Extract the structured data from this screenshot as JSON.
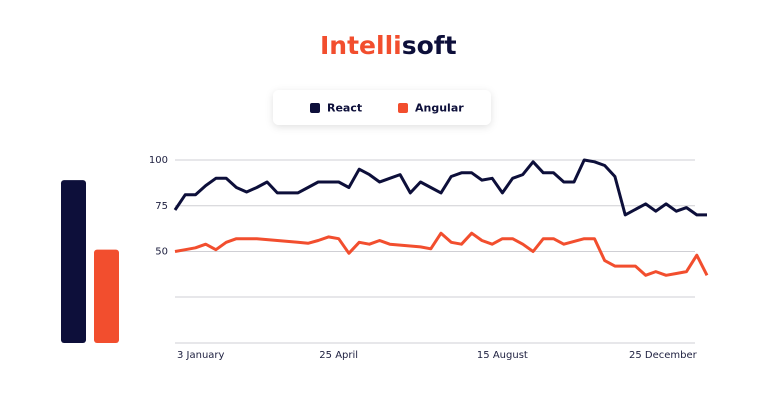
{
  "chart_data": {
    "type": "line",
    "brand": [
      "Intelli",
      "soft"
    ],
    "categories": [
      "3 January",
      null,
      null,
      null,
      null,
      null,
      null,
      null,
      null,
      null,
      null,
      null,
      null,
      null,
      null,
      null,
      "25 April",
      null,
      null,
      null,
      null,
      null,
      null,
      null,
      null,
      null,
      null,
      null,
      null,
      null,
      null,
      null,
      "15 August",
      null,
      null,
      null,
      null,
      null,
      null,
      null,
      null,
      null,
      null,
      null,
      null,
      null,
      null,
      null,
      null,
      null,
      null,
      "25 December",
      null
    ],
    "series": [
      {
        "name": "React",
        "color": "#0d0f3a",
        "bar_value": 89,
        "values": [
          72.7,
          81,
          81,
          86,
          90,
          90,
          85,
          82.5,
          85,
          88,
          82,
          82,
          82,
          85,
          88,
          88,
          88,
          85,
          95,
          92,
          88,
          90,
          92,
          82,
          88,
          85,
          82,
          91,
          93,
          93,
          89,
          90,
          82,
          90,
          92,
          99,
          93,
          93,
          88,
          88,
          100,
          99,
          97,
          91,
          70,
          73,
          76,
          72,
          76,
          72,
          74,
          70,
          70
        ]
      },
      {
        "name": "Angular",
        "color": "#f24e2e",
        "bar_value": 51,
        "values": [
          50,
          51,
          52,
          54,
          51,
          55,
          57,
          57,
          57,
          56.5,
          56,
          55.5,
          55,
          54.5,
          56,
          58,
          57,
          49,
          55,
          54,
          56,
          54,
          53.5,
          53,
          52.5,
          51.5,
          60,
          55,
          54,
          60,
          56,
          54,
          57,
          57,
          54,
          50,
          57,
          57,
          54,
          55.5,
          57,
          57,
          45,
          42,
          42,
          42,
          37,
          39,
          37,
          38,
          39,
          48,
          37
        ]
      }
    ],
    "ylim": [
      0,
      100
    ],
    "yticks": [
      50,
      75,
      100
    ],
    "grid": true
  }
}
